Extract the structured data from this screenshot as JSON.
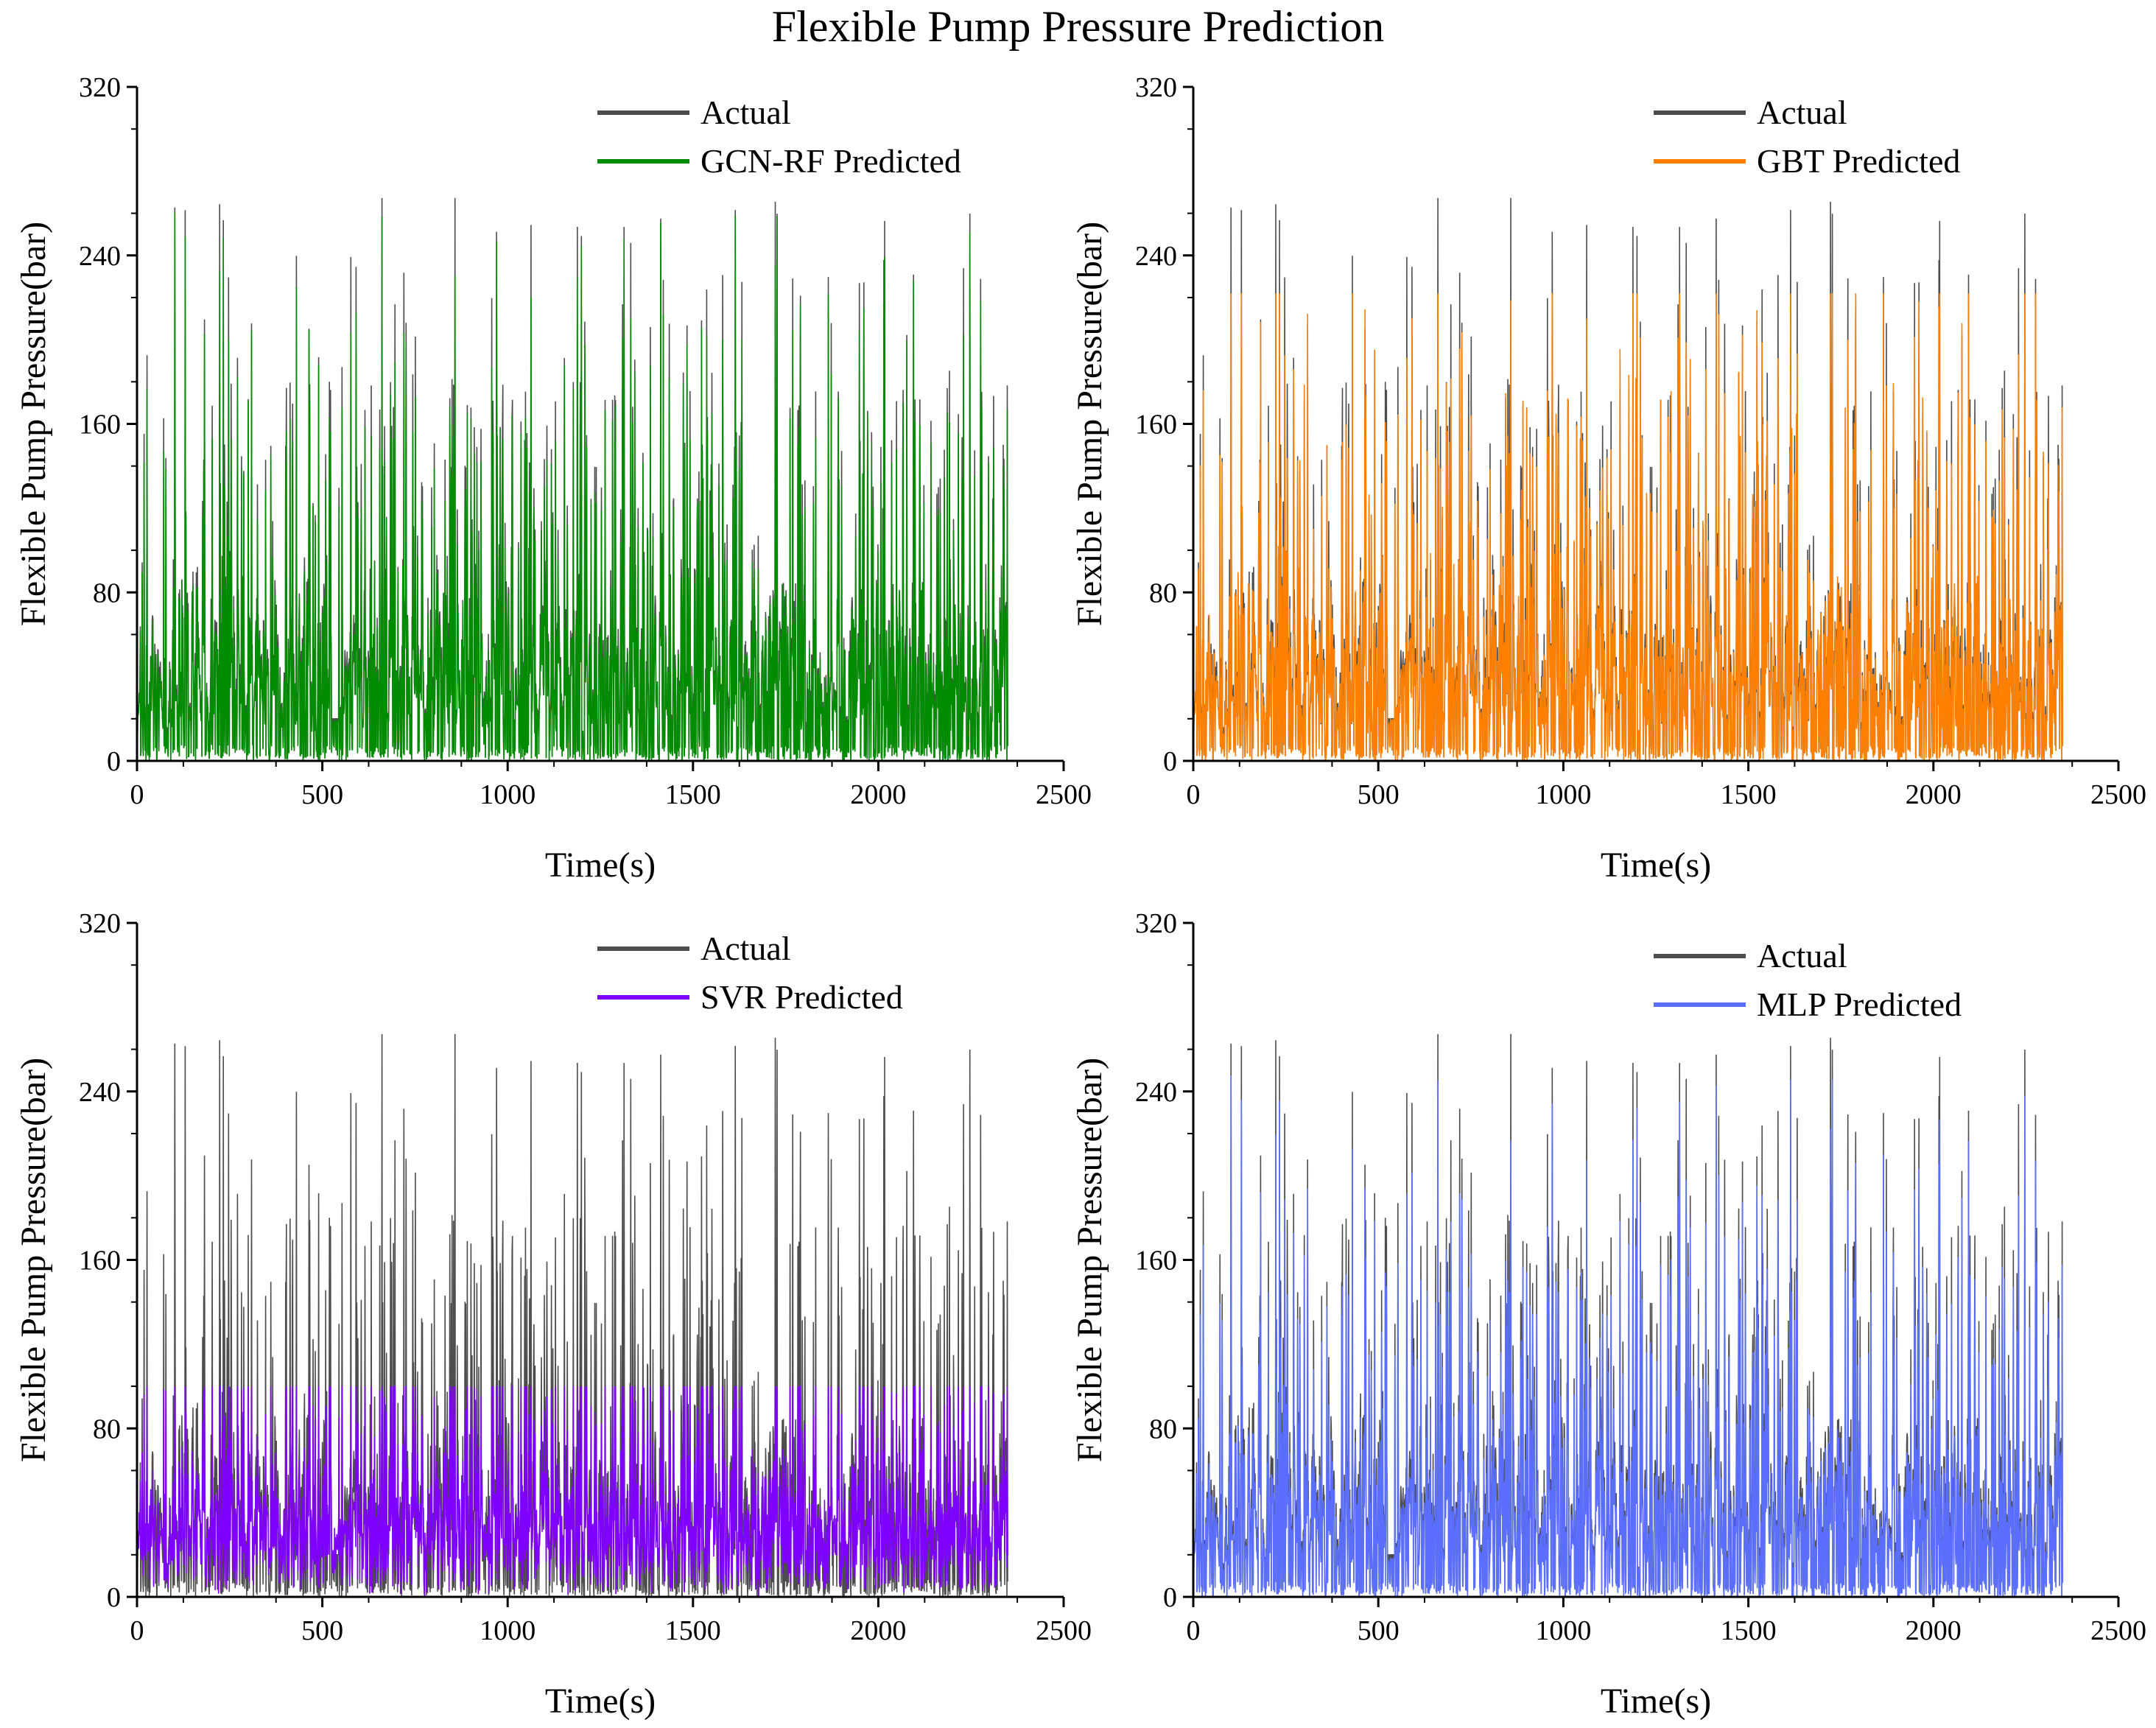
{
  "title": "Flexible Pump Pressure Prediction",
  "colors": {
    "actual": "#4d4d4d",
    "gcn_rf": "#008c00",
    "gbt": "#ff8000",
    "svr": "#8000ff",
    "mlp": "#5a6eff",
    "axis": "#000000"
  },
  "chart_data": [
    {
      "type": "line",
      "title": "",
      "xlabel": "Time(s)",
      "ylabel": "Flexible Pump Pressure(bar)",
      "xlim": [
        0,
        2500
      ],
      "ylim": [
        0,
        320
      ],
      "xticks": [
        0,
        500,
        1000,
        1500,
        2000,
        2500
      ],
      "yticks": [
        0,
        80,
        160,
        240,
        320
      ],
      "series": [
        {
          "name": "Actual",
          "color_key": "actual",
          "description": "Measured pressure over 0–2350 s, frequent spikes up to ~265 bar"
        },
        {
          "name": "GCN-RF Predicted",
          "color_key": "gcn_rf",
          "description": "Closely tracks actual, peaks up to ~265 bar"
        }
      ],
      "seed": 11,
      "pred_mode": "track"
    },
    {
      "type": "line",
      "title": "",
      "xlabel": "Time(s)",
      "ylabel": "Flexible Pump Pressure(bar)",
      "xlim": [
        0,
        2500
      ],
      "ylim": [
        0,
        320
      ],
      "xticks": [
        0,
        500,
        1000,
        1500,
        2000,
        2500
      ],
      "yticks": [
        0,
        80,
        160,
        240,
        320
      ],
      "series": [
        {
          "name": "Actual",
          "color_key": "actual",
          "description": "Measured pressure, spikes up to ~265 bar"
        },
        {
          "name": "GBT Predicted",
          "color_key": "gbt",
          "description": "Predicted pressure capped near ~220 bar"
        }
      ],
      "seed": 11,
      "pred_mode": "cap220"
    },
    {
      "type": "line",
      "title": "",
      "xlabel": "Time(s)",
      "ylabel": "Flexible Pump Pressure(bar)",
      "xlim": [
        0,
        2500
      ],
      "ylim": [
        0,
        320
      ],
      "xticks": [
        0,
        500,
        1000,
        1500,
        2000,
        2500
      ],
      "yticks": [
        0,
        80,
        160,
        240,
        320
      ],
      "series": [
        {
          "name": "Actual",
          "color_key": "actual",
          "description": "Measured pressure, spikes up to ~265 bar"
        },
        {
          "name": "SVR Predicted",
          "color_key": "svr",
          "description": "Predicted pressure mostly within 0–100 bar"
        }
      ],
      "seed": 11,
      "pred_mode": "cap100"
    },
    {
      "type": "line",
      "title": "",
      "xlabel": "Time(s)",
      "ylabel": "Flexible Pump Pressure(bar)",
      "xlim": [
        0,
        2500
      ],
      "ylim": [
        0,
        320
      ],
      "xticks": [
        0,
        500,
        1000,
        1500,
        2000,
        2500
      ],
      "yticks": [
        0,
        80,
        160,
        240,
        320
      ],
      "series": [
        {
          "name": "Actual",
          "color_key": "actual",
          "description": "Measured pressure, spikes up to ~265 bar"
        },
        {
          "name": "MLP Predicted",
          "color_key": "mlp",
          "description": "Predicted pressure tracks actual, peaks ~245 bar"
        }
      ],
      "seed": 11,
      "pred_mode": "mlp"
    }
  ]
}
